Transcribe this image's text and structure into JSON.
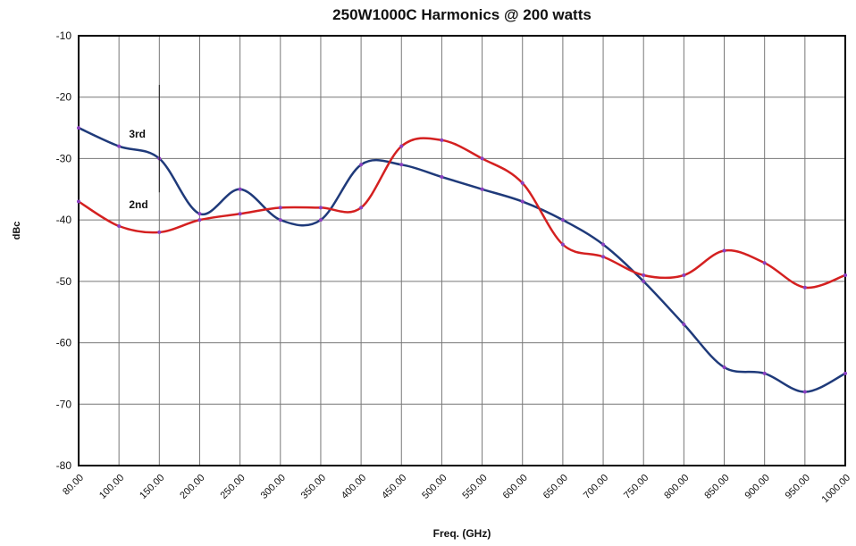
{
  "chart_data": {
    "type": "line",
    "title": "250W1000C Harmonics @ 200 watts",
    "x_label": "Freq. (GHz)",
    "y_label": "dBc",
    "categories": [
      "80.00",
      "100.00",
      "150.00",
      "200.00",
      "250.00",
      "300.00",
      "350.00",
      "400.00",
      "450.00",
      "500.00",
      "550.00",
      "600.00",
      "650.00",
      "700.00",
      "750.00",
      "800.00",
      "850.00",
      "900.00",
      "950.00",
      "1000.00"
    ],
    "series": [
      {
        "name": "3rd",
        "color": "#1f3a7a",
        "values": [
          -25,
          -28,
          -30,
          -39,
          -35,
          -40,
          -40,
          -31,
          -31,
          -33,
          -35,
          -37,
          -40,
          -44,
          -50,
          -57,
          -64,
          -65,
          -68,
          -65
        ]
      },
      {
        "name": "2nd",
        "color": "#d42020",
        "values": [
          -37,
          -41,
          -42,
          -40,
          -39,
          -38,
          -38,
          -38,
          -28,
          -27,
          -30,
          -34,
          -44,
          -46,
          -49,
          -49,
          -45,
          -47,
          -51,
          -49
        ]
      }
    ],
    "ylim": [
      -80,
      -10
    ],
    "yticks": [
      -80,
      -70,
      -60,
      -50,
      -40,
      -30,
      -20,
      -10
    ],
    "grid": true,
    "marker_color": "#8a3fc0"
  }
}
